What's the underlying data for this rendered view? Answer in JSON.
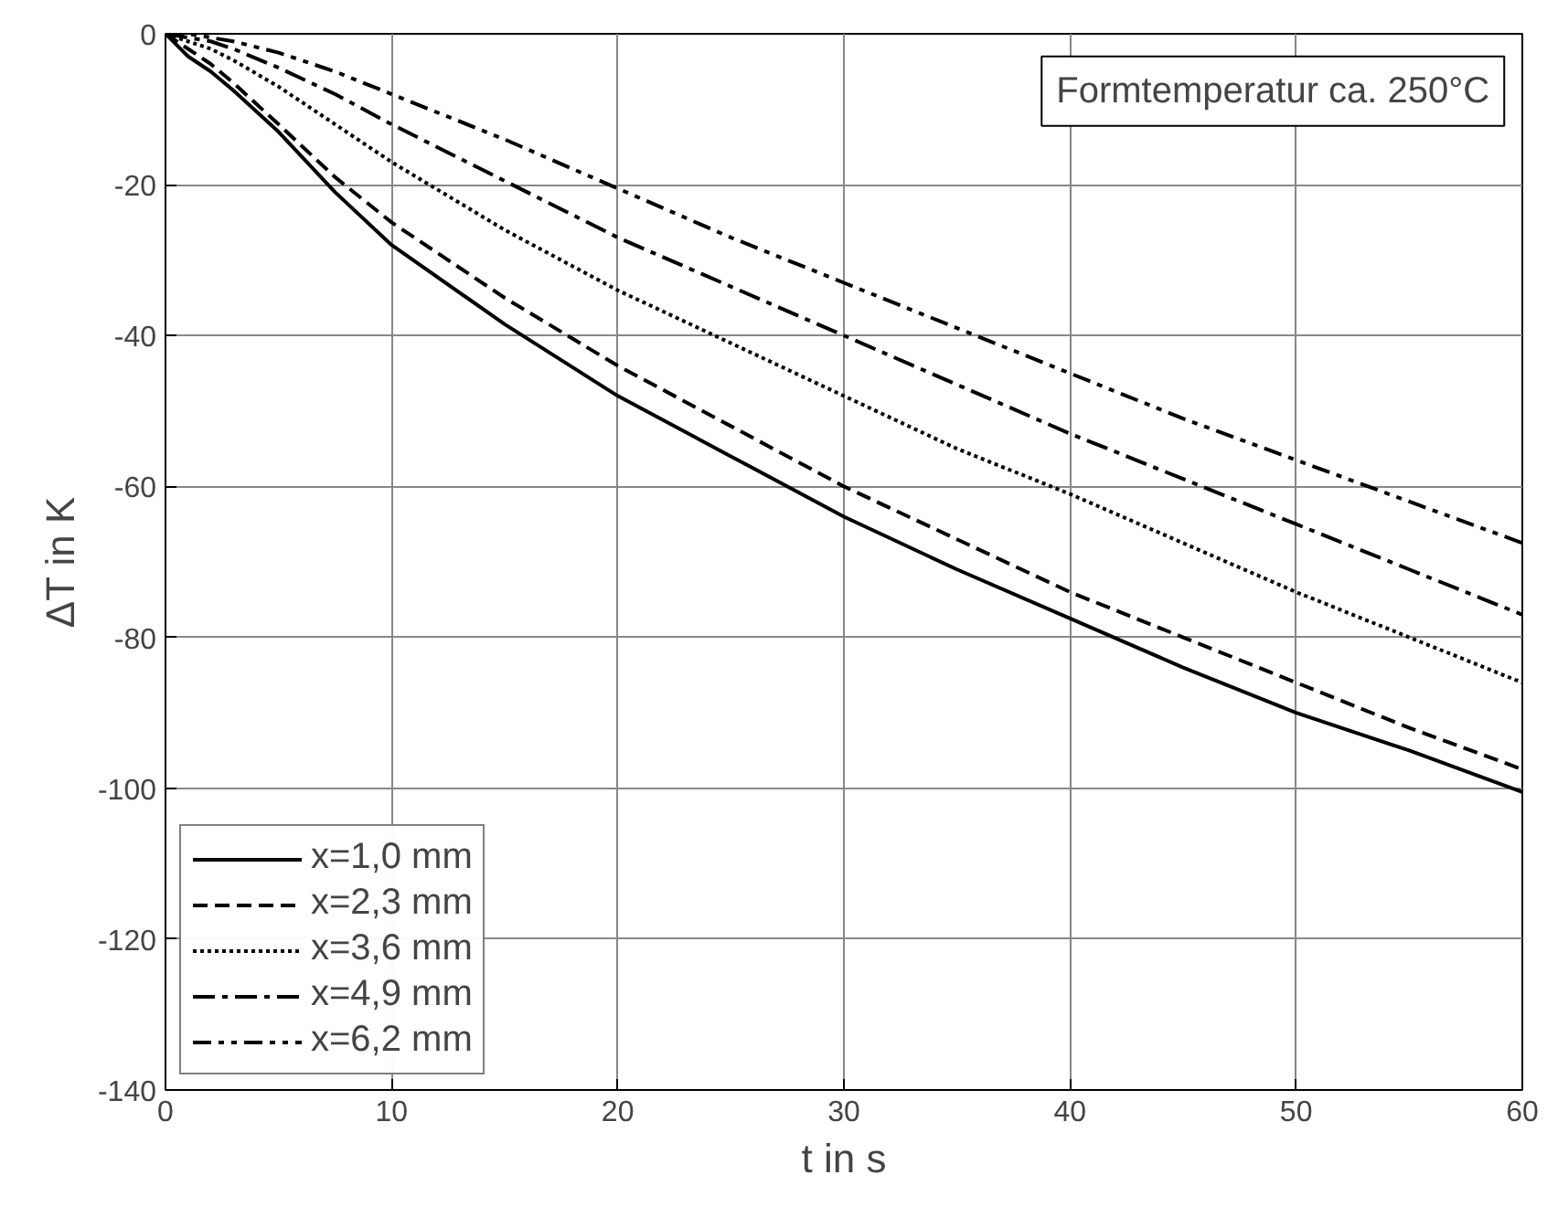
{
  "chart_data": {
    "type": "line",
    "xlabel": "t in s",
    "ylabel": "ΔT in K",
    "xlim": [
      0,
      60
    ],
    "ylim": [
      -140,
      0
    ],
    "xticks": [
      0,
      10,
      20,
      30,
      40,
      50,
      60
    ],
    "yticks": [
      -140,
      -120,
      -100,
      -80,
      -60,
      -40,
      -20,
      0
    ],
    "grid": true,
    "legend": "bottom left",
    "marker": "none",
    "annotations": [
      "Formtemperatur ca. 250°C"
    ],
    "x": [
      0,
      1,
      2,
      3,
      5,
      7.5,
      10,
      15,
      20,
      25,
      30,
      35,
      40,
      45,
      50,
      55,
      60
    ],
    "series": [
      {
        "name": "x=1,0 mm",
        "color": "#000000",
        "line_style": "solid",
        "values": [
          0,
          -3,
          -5,
          -7.5,
          -13,
          -21,
          -28,
          -38.5,
          -48,
          -56,
          -64,
          -71,
          -77.5,
          -84,
          -90,
          -95,
          -100.5
        ]
      },
      {
        "name": "x=2,3 mm",
        "color": "#000000",
        "line_style": "dashed",
        "values": [
          0,
          -2,
          -4,
          -6.5,
          -12,
          -19,
          -25,
          -35,
          -44,
          -52,
          -60,
          -67,
          -74,
          -80,
          -86,
          -92,
          -97.5
        ]
      },
      {
        "name": "x=3,6 mm",
        "color": "#000000",
        "line_style": "dotted",
        "values": [
          0,
          -1,
          -2,
          -3.5,
          -7,
          -12,
          -17,
          -26,
          -34,
          -41,
          -48,
          -55,
          -61,
          -67.5,
          -74,
          -80,
          -86
        ]
      },
      {
        "name": "x=4,9 mm",
        "color": "#000000",
        "line_style": "dashdot",
        "values": [
          0,
          -0.5,
          -1,
          -2,
          -4.5,
          -8,
          -12,
          -19.5,
          -27,
          -33.5,
          -40,
          -46.5,
          -53,
          -59,
          -65,
          -71,
          -77
        ]
      },
      {
        "name": "x=6,2 mm",
        "color": "#000000",
        "line_style": "dashdotdot",
        "values": [
          0,
          0,
          -0.5,
          -1,
          -2.5,
          -5,
          -8,
          -14,
          -20.5,
          -27,
          -33,
          -39,
          -45,
          -51,
          -56.5,
          -62,
          -67.5
        ]
      }
    ]
  }
}
